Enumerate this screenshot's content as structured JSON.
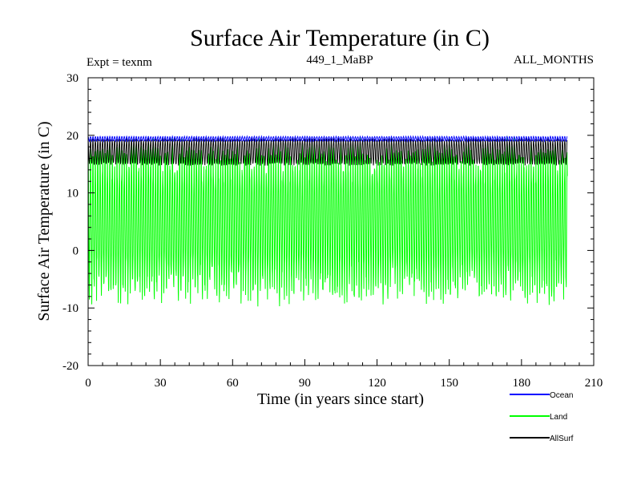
{
  "chart_data": {
    "type": "line",
    "title": "Surface Air Temperature (in C)",
    "subtitle_left": "Expt = texnm",
    "subtitle_center": "449_1_MaBP",
    "subtitle_right": "ALL_MONTHS",
    "xlabel": "Time (in years since start)",
    "ylabel": "Surface Air Temperature (in C)",
    "xlim": [
      0,
      210
    ],
    "ylim": [
      -20,
      30
    ],
    "x_ticks": [
      0,
      30,
      60,
      90,
      120,
      150,
      180,
      210
    ],
    "y_ticks": [
      -20,
      -10,
      0,
      10,
      20,
      30
    ],
    "x_tick_labels": [
      "0",
      "30",
      "60",
      "90",
      "120",
      "150",
      "180",
      "210"
    ],
    "y_tick_labels": [
      "-20",
      "-10",
      "0",
      "10",
      "20",
      "30"
    ],
    "legend_position": "bottom-right, below plot",
    "series": [
      {
        "name": "Ocean",
        "color": "#0000ff",
        "x_range": [
          0,
          199
        ],
        "seasonal_min": 19.0,
        "seasonal_max": 19.8,
        "mean": 19.4
      },
      {
        "name": "Land",
        "color": "#00ff00",
        "x_range": [
          0,
          199
        ],
        "seasonal_min": -9.5,
        "seasonal_max": 19.5,
        "mean": 5.0
      },
      {
        "name": "AllSurf",
        "color": "#000000",
        "x_range": [
          0,
          199
        ],
        "seasonal_min": 15.0,
        "seasonal_max": 19.3,
        "mean": 17.2
      }
    ]
  }
}
